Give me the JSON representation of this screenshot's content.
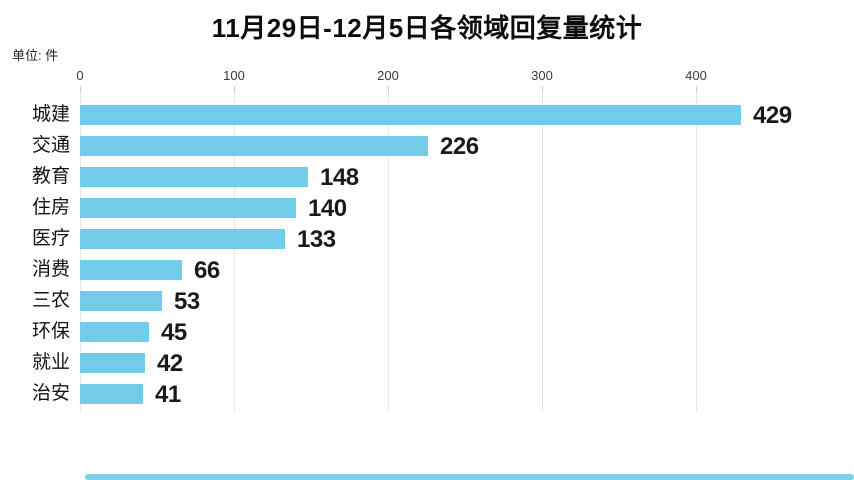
{
  "title": "11月29日-12月5日各领域回复量统计",
  "unit_label": "单位: 件",
  "chart_data": {
    "type": "bar",
    "orientation": "horizontal",
    "title": "11月29日-12月5日各领域回复量统计",
    "unit": "件",
    "categories": [
      "城建",
      "交通",
      "教育",
      "住房",
      "医疗",
      "消费",
      "三农",
      "环保",
      "就业",
      "治安"
    ],
    "values": [
      429,
      226,
      148,
      140,
      133,
      66,
      53,
      45,
      42,
      41
    ],
    "axis_ticks": [
      0,
      100,
      200,
      300,
      400
    ],
    "xlim": [
      0,
      440
    ],
    "xlabel": "",
    "ylabel": "",
    "grid": true,
    "legend": "none",
    "value_labels_shown": true
  },
  "colors": {
    "bar": "#73CBEA",
    "scrollbar": "#7ED1EC",
    "grid": "#e7e7e7",
    "tick": "#c9c9c9",
    "text": "#1a1a1a"
  }
}
